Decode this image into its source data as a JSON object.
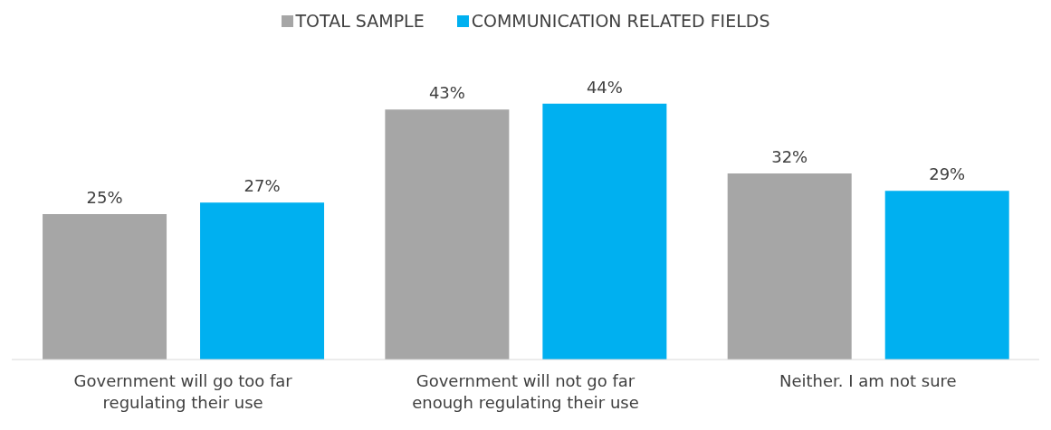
{
  "chart_data": {
    "type": "bar",
    "categories": [
      "Government will go too far regulating their use",
      "Government will not go far enough regulating their use",
      "Neither. I am not sure"
    ],
    "series": [
      {
        "name": "TOTAL SAMPLE",
        "color": "#a6a6a6",
        "values": [
          25,
          43,
          32
        ],
        "value_labels": [
          "25%",
          "43%",
          "32%"
        ]
      },
      {
        "name": "COMMUNICATION RELATED FIELDS",
        "color": "#00b0f0",
        "values": [
          27,
          44,
          29
        ],
        "value_labels": [
          "27%",
          "44%",
          "29%"
        ]
      }
    ],
    "legend": "top"
  }
}
